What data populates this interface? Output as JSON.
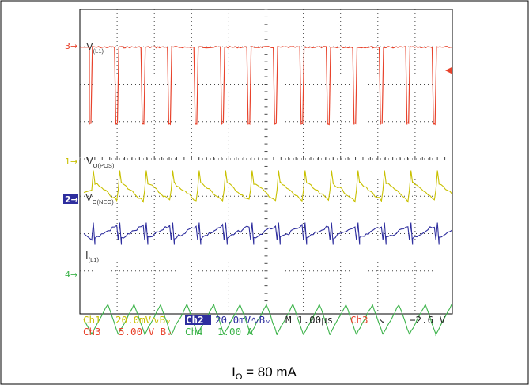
{
  "chart_data": {
    "type": "line",
    "title": "",
    "xlabel": "",
    "ylabel": "",
    "grid": true,
    "timebase": "M 1.00µs",
    "caption": {
      "main": "I",
      "sub": "O",
      "rest": " = 80 mA"
    },
    "trace_labels": [
      {
        "id": "vl1",
        "main": "V",
        "sub": "(L1)",
        "color": "#333333"
      },
      {
        "id": "vopos",
        "main": "V",
        "sub": "O(POS)",
        "color": "#333333"
      },
      {
        "id": "voneg",
        "main": "V",
        "sub": "O(NEG)",
        "color": "#333333"
      },
      {
        "id": "il1",
        "main": "I",
        "sub": "(L1)",
        "color": "#333333"
      }
    ],
    "channels": [
      {
        "name": "Ch1",
        "setting": "20.0mV",
        "coupling": "↿Bᵥ",
        "color": "#c8c000",
        "marker": "1"
      },
      {
        "name": "Ch2",
        "setting": "20.0mV",
        "coupling": "↿Bᵥ",
        "color": "#2e2e9e",
        "marker": "2"
      },
      {
        "name": "Ch3",
        "setting": "5.00 V",
        "coupling": "Bᵥ",
        "color": "#e8432c",
        "marker": "3"
      },
      {
        "name": "Ch4",
        "setting": "1.00 A",
        "coupling": "",
        "color": "#3cb34a",
        "marker": "4"
      }
    ],
    "trigger": {
      "source": "Ch3",
      "slope": "↘",
      "level": "−2.6 V"
    },
    "series": [
      {
        "name": "V(L1)",
        "channel": 3,
        "waveform": "square",
        "cycles": 14,
        "high_div": 0.3,
        "low_div": -2.2,
        "duty_high": 0.75
      },
      {
        "name": "VO(POS)",
        "channel": 1,
        "waveform": "sawtooth",
        "cycles": 14,
        "amplitude_div": 0.35
      },
      {
        "name": "VO(NEG)",
        "channel": 2,
        "waveform": "sawtooth",
        "cycles": 14,
        "amplitude_div": 0.3
      },
      {
        "name": "IL1",
        "channel": 4,
        "waveform": "triangle",
        "cycles": 14,
        "amplitude_div": 0.5
      }
    ],
    "x_divisions": 10,
    "y_divisions": 8
  },
  "colors": {
    "ch1": "#c8c000",
    "ch2": "#2e2e9e",
    "ch3": "#e8432c",
    "ch4": "#3cb34a",
    "grid": "#444444",
    "border": "#000000"
  }
}
